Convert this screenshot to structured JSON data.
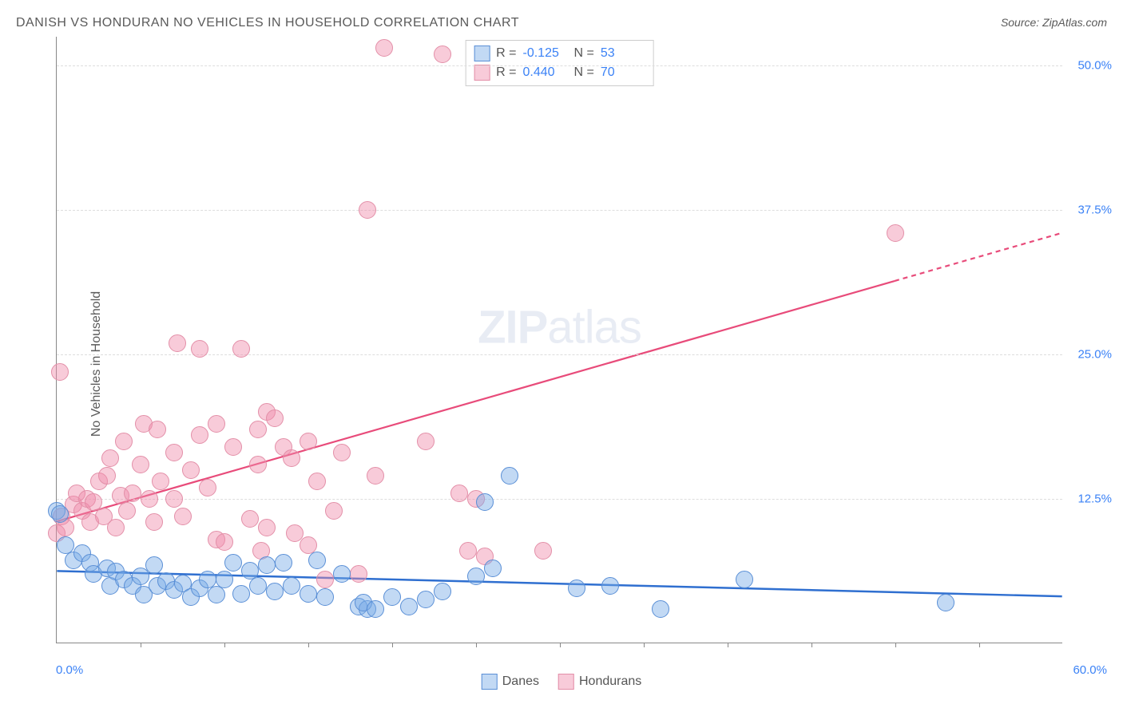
{
  "title": "DANISH VS HONDURAN NO VEHICLES IN HOUSEHOLD CORRELATION CHART",
  "source_label": "Source:",
  "source_name": "ZipAtlas.com",
  "y_axis_title": "No Vehicles in Household",
  "watermark_a": "ZIP",
  "watermark_b": "atlas",
  "chart": {
    "type": "scatter-with-regression",
    "xlim": [
      0,
      60
    ],
    "ylim": [
      0,
      52.5
    ],
    "x_min_label": "0.0%",
    "x_max_label": "60.0%",
    "y_ticks": [
      12.5,
      25.0,
      37.5,
      50.0
    ],
    "y_tick_labels": [
      "12.5%",
      "25.0%",
      "37.5%",
      "50.0%"
    ],
    "x_tick_positions": [
      5,
      10,
      15,
      20,
      25,
      30,
      35,
      40,
      45,
      50,
      55
    ],
    "background_color": "#ffffff",
    "grid_color": "#dddddd",
    "axis_color": "#888888",
    "tick_label_color": "#3b82f6",
    "series": {
      "danes": {
        "label": "Danes",
        "color_fill": "rgba(120,170,230,0.45)",
        "color_stroke": "#5a8fd6",
        "marker_radius": 11,
        "R": "-0.125",
        "N": "53",
        "regression": {
          "x1": 0,
          "y1": 6.2,
          "x2": 60,
          "y2": 4.0,
          "color": "#2f6fd0",
          "width": 2.5,
          "dash_from_x": null
        },
        "points": [
          [
            0,
            11.5
          ],
          [
            0.2,
            11.2
          ],
          [
            0.5,
            8.5
          ],
          [
            1,
            7.2
          ],
          [
            1.5,
            7.8
          ],
          [
            2,
            7.0
          ],
          [
            2.2,
            6.0
          ],
          [
            3,
            6.5
          ],
          [
            3.2,
            5.0
          ],
          [
            3.5,
            6.2
          ],
          [
            4,
            5.5
          ],
          [
            4.5,
            5.0
          ],
          [
            5,
            5.8
          ],
          [
            5.2,
            4.2
          ],
          [
            5.8,
            6.8
          ],
          [
            6,
            5.0
          ],
          [
            6.5,
            5.4
          ],
          [
            7,
            4.6
          ],
          [
            7.5,
            5.2
          ],
          [
            8,
            4.0
          ],
          [
            8.5,
            4.8
          ],
          [
            9,
            5.5
          ],
          [
            9.5,
            4.2
          ],
          [
            10,
            5.5
          ],
          [
            10.5,
            7.0
          ],
          [
            11,
            4.3
          ],
          [
            11.5,
            6.3
          ],
          [
            12,
            5.0
          ],
          [
            12.5,
            6.8
          ],
          [
            13,
            4.5
          ],
          [
            13.5,
            7.0
          ],
          [
            14,
            5.0
          ],
          [
            15,
            4.3
          ],
          [
            15.5,
            7.2
          ],
          [
            16,
            4.0
          ],
          [
            17,
            6.0
          ],
          [
            18,
            3.2
          ],
          [
            18.5,
            3.0
          ],
          [
            18.3,
            3.5
          ],
          [
            19,
            3.0
          ],
          [
            20,
            4.0
          ],
          [
            21,
            3.2
          ],
          [
            22,
            3.8
          ],
          [
            23,
            4.5
          ],
          [
            25,
            5.8
          ],
          [
            25.5,
            12.2
          ],
          [
            26,
            6.5
          ],
          [
            27,
            14.5
          ],
          [
            31,
            4.8
          ],
          [
            33,
            5.0
          ],
          [
            36,
            3.0
          ],
          [
            41,
            5.5
          ],
          [
            53,
            3.5
          ]
        ]
      },
      "hondurans": {
        "label": "Hondurans",
        "color_fill": "rgba(240,140,170,0.45)",
        "color_stroke": "#e38fa8",
        "marker_radius": 11,
        "R": "0.440",
        "N": "70",
        "regression": {
          "x1": 0,
          "y1": 10.5,
          "x2": 60,
          "y2": 35.5,
          "color": "#e84b7a",
          "width": 2.2,
          "dash_from_x": 50
        },
        "points": [
          [
            0,
            9.5
          ],
          [
            0.3,
            11.0
          ],
          [
            0.5,
            10.0
          ],
          [
            0.2,
            23.5
          ],
          [
            1,
            12.0
          ],
          [
            1.2,
            13.0
          ],
          [
            1.5,
            11.5
          ],
          [
            1.8,
            12.5
          ],
          [
            2,
            10.5
          ],
          [
            2.2,
            12.2
          ],
          [
            2.5,
            14.0
          ],
          [
            2.8,
            11.0
          ],
          [
            3,
            14.5
          ],
          [
            3.2,
            16.0
          ],
          [
            3.5,
            10.0
          ],
          [
            3.8,
            12.8
          ],
          [
            4,
            17.5
          ],
          [
            4.2,
            11.5
          ],
          [
            4.5,
            13.0
          ],
          [
            5,
            15.5
          ],
          [
            5.2,
            19.0
          ],
          [
            5.5,
            12.5
          ],
          [
            5.8,
            10.5
          ],
          [
            6,
            18.5
          ],
          [
            6.2,
            14.0
          ],
          [
            7,
            16.5
          ],
          [
            7,
            12.5
          ],
          [
            7.2,
            26.0
          ],
          [
            7.5,
            11.0
          ],
          [
            8,
            15.0
          ],
          [
            8.5,
            18.0
          ],
          [
            8.5,
            25.5
          ],
          [
            9,
            13.5
          ],
          [
            9.5,
            19.0
          ],
          [
            9.5,
            9.0
          ],
          [
            10,
            8.8
          ],
          [
            10.5,
            17.0
          ],
          [
            11,
            25.5
          ],
          [
            11.5,
            10.8
          ],
          [
            12,
            18.5
          ],
          [
            12,
            15.5
          ],
          [
            12.2,
            8.0
          ],
          [
            12.5,
            10.0
          ],
          [
            12.5,
            20.0
          ],
          [
            13,
            19.5
          ],
          [
            13.5,
            17.0
          ],
          [
            14,
            16.0
          ],
          [
            14.2,
            9.5
          ],
          [
            15,
            8.5
          ],
          [
            15,
            17.5
          ],
          [
            15.5,
            14.0
          ],
          [
            16,
            5.5
          ],
          [
            16.5,
            11.5
          ],
          [
            17,
            16.5
          ],
          [
            18,
            6.0
          ],
          [
            18.5,
            37.5
          ],
          [
            19,
            14.5
          ],
          [
            19.5,
            51.5
          ],
          [
            22,
            17.5
          ],
          [
            23,
            51.0
          ],
          [
            24,
            13.0
          ],
          [
            24.5,
            8.0
          ],
          [
            25,
            12.5
          ],
          [
            25.5,
            7.5
          ],
          [
            29,
            8.0
          ],
          [
            50,
            35.5
          ]
        ]
      }
    }
  },
  "legend_bottom": {
    "danes": "Danes",
    "hondurans": "Hondurans"
  }
}
